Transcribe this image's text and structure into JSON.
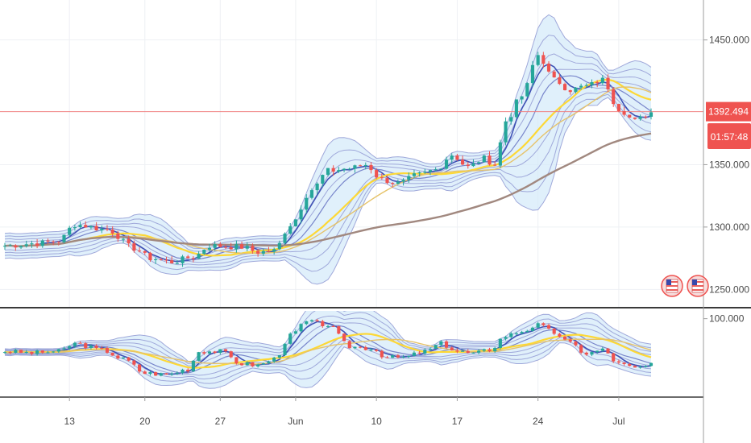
{
  "chart_data": {
    "type": "candlestick",
    "price_axis": {
      "ticks": [
        {
          "value": 1450,
          "label": "1450.000"
        },
        {
          "value": 1350,
          "label": "1350.000"
        },
        {
          "value": 1300,
          "label": "1300.000"
        },
        {
          "value": 1250,
          "label": "1250.000"
        }
      ],
      "range": [
        1236,
        1482
      ]
    },
    "oscillator_axis": {
      "ticks": [
        {
          "value": 100,
          "label": "100.000"
        }
      ],
      "range": [
        0,
        110
      ]
    },
    "time_axis": {
      "ticks": [
        {
          "label": "13",
          "index": 12
        },
        {
          "label": "20",
          "index": 26
        },
        {
          "label": "27",
          "index": 40
        },
        {
          "label": "Jun",
          "index": 54
        },
        {
          "label": "10",
          "index": 69
        },
        {
          "label": "17",
          "index": 84
        },
        {
          "label": "24",
          "index": 99
        },
        {
          "label": "Jul",
          "index": 114
        }
      ],
      "count": 121
    },
    "current_price": {
      "value": 1392.494,
      "label": "1392.494"
    },
    "countdown": {
      "label": "01:57:48"
    },
    "close_anchors": [
      [
        0,
        1285
      ],
      [
        6,
        1287
      ],
      [
        10,
        1289
      ],
      [
        13,
        1302
      ],
      [
        19,
        1298
      ],
      [
        24,
        1283
      ],
      [
        27,
        1275
      ],
      [
        31,
        1272
      ],
      [
        35,
        1276
      ],
      [
        38,
        1285
      ],
      [
        44,
        1284
      ],
      [
        47,
        1280
      ],
      [
        50,
        1281
      ],
      [
        53,
        1302
      ],
      [
        57,
        1330
      ],
      [
        60,
        1345
      ],
      [
        64,
        1347
      ],
      [
        67,
        1350
      ],
      [
        70,
        1338
      ],
      [
        73,
        1335
      ],
      [
        77,
        1342
      ],
      [
        80,
        1346
      ],
      [
        83,
        1358
      ],
      [
        86,
        1348
      ],
      [
        89,
        1355
      ],
      [
        91,
        1350
      ],
      [
        93,
        1385
      ],
      [
        96,
        1405
      ],
      [
        99,
        1438
      ],
      [
        102,
        1418
      ],
      [
        105,
        1410
      ],
      [
        108,
        1413
      ],
      [
        111,
        1418
      ],
      [
        114,
        1395
      ],
      [
        117,
        1385
      ],
      [
        120,
        1392
      ]
    ],
    "oscillator_anchors": [
      [
        0,
        58
      ],
      [
        5,
        56
      ],
      [
        10,
        58
      ],
      [
        13,
        68
      ],
      [
        18,
        60
      ],
      [
        22,
        48
      ],
      [
        26,
        30
      ],
      [
        30,
        28
      ],
      [
        34,
        35
      ],
      [
        36,
        58
      ],
      [
        40,
        58
      ],
      [
        44,
        42
      ],
      [
        47,
        40
      ],
      [
        50,
        48
      ],
      [
        53,
        78
      ],
      [
        56,
        96
      ],
      [
        60,
        92
      ],
      [
        64,
        64
      ],
      [
        68,
        62
      ],
      [
        71,
        50
      ],
      [
        74,
        50
      ],
      [
        78,
        58
      ],
      [
        81,
        68
      ],
      [
        84,
        58
      ],
      [
        87,
        55
      ],
      [
        90,
        60
      ],
      [
        93,
        78
      ],
      [
        96,
        84
      ],
      [
        99,
        92
      ],
      [
        102,
        82
      ],
      [
        105,
        68
      ],
      [
        108,
        55
      ],
      [
        111,
        60
      ],
      [
        114,
        42
      ],
      [
        117,
        36
      ],
      [
        120,
        40
      ]
    ],
    "colors": {
      "bull": "#26a69a",
      "bear": "#ef5350",
      "envelope_fill": "#d6ebfa",
      "envelope_line": "#9fa8da",
      "ma_fast": "#3f51b5",
      "ma_mid": "#fdd835",
      "ma_slow": "#a1887f",
      "current_price": "#f08080",
      "axis_text": "#4a4a4a"
    }
  }
}
